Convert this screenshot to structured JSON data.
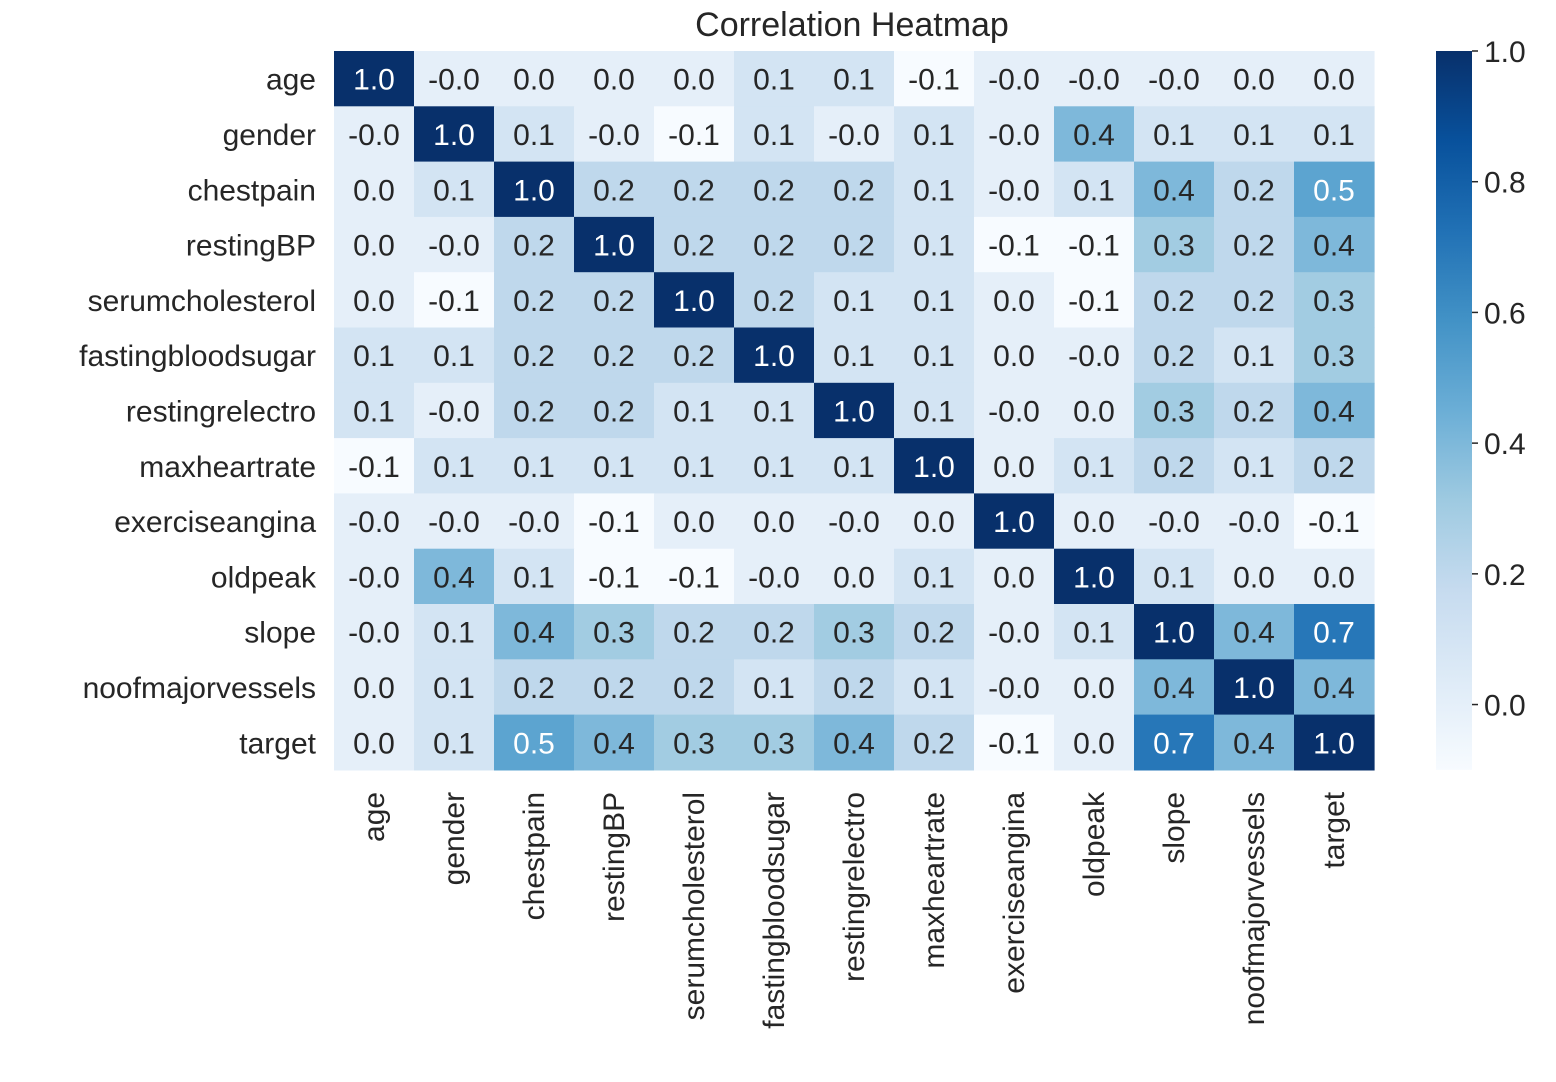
{
  "chart_data": {
    "type": "heatmap",
    "title": "Correlation Heatmap",
    "xlabel": "",
    "ylabel": "",
    "rows": [
      "age",
      "gender",
      "chestpain",
      "restingBP",
      "serumcholesterol",
      "fastingbloodsugar",
      "restingrelectro",
      "maxheartrate",
      "exerciseangina",
      "oldpeak",
      "slope",
      "noofmajorvessels",
      "target"
    ],
    "columns": [
      "age",
      "gender",
      "chestpain",
      "restingBP",
      "serumcholesterol",
      "fastingbloodsugar",
      "restingrelectro",
      "maxheartrate",
      "exerciseangina",
      "oldpeak",
      "slope",
      "noofmajorvessels",
      "target"
    ],
    "values": [
      [
        1.0,
        -0.0,
        0.0,
        0.0,
        0.0,
        0.1,
        0.1,
        -0.1,
        -0.0,
        -0.0,
        -0.0,
        0.0,
        0.0
      ],
      [
        -0.0,
        1.0,
        0.1,
        -0.0,
        -0.1,
        0.1,
        -0.0,
        0.1,
        -0.0,
        0.4,
        0.1,
        0.1,
        0.1
      ],
      [
        0.0,
        0.1,
        1.0,
        0.2,
        0.2,
        0.2,
        0.2,
        0.1,
        -0.0,
        0.1,
        0.4,
        0.2,
        0.5
      ],
      [
        0.0,
        -0.0,
        0.2,
        1.0,
        0.2,
        0.2,
        0.2,
        0.1,
        -0.1,
        -0.1,
        0.3,
        0.2,
        0.4
      ],
      [
        0.0,
        -0.1,
        0.2,
        0.2,
        1.0,
        0.2,
        0.1,
        0.1,
        0.0,
        -0.1,
        0.2,
        0.2,
        0.3
      ],
      [
        0.1,
        0.1,
        0.2,
        0.2,
        0.2,
        1.0,
        0.1,
        0.1,
        0.0,
        -0.0,
        0.2,
        0.1,
        0.3
      ],
      [
        0.1,
        -0.0,
        0.2,
        0.2,
        0.1,
        0.1,
        1.0,
        0.1,
        -0.0,
        0.0,
        0.3,
        0.2,
        0.4
      ],
      [
        -0.1,
        0.1,
        0.1,
        0.1,
        0.1,
        0.1,
        0.1,
        1.0,
        0.0,
        0.1,
        0.2,
        0.1,
        0.2
      ],
      [
        -0.0,
        -0.0,
        -0.0,
        -0.1,
        0.0,
        0.0,
        -0.0,
        0.0,
        1.0,
        0.0,
        -0.0,
        -0.0,
        -0.1
      ],
      [
        -0.0,
        0.4,
        0.1,
        -0.1,
        -0.1,
        -0.0,
        0.0,
        0.1,
        0.0,
        1.0,
        0.1,
        0.0,
        0.0
      ],
      [
        -0.0,
        0.1,
        0.4,
        0.3,
        0.2,
        0.2,
        0.3,
        0.2,
        -0.0,
        0.1,
        1.0,
        0.4,
        0.7
      ],
      [
        0.0,
        0.1,
        0.2,
        0.2,
        0.2,
        0.1,
        0.2,
        0.1,
        -0.0,
        0.0,
        0.4,
        1.0,
        0.4
      ],
      [
        0.0,
        0.1,
        0.5,
        0.4,
        0.3,
        0.3,
        0.4,
        0.2,
        -0.1,
        0.0,
        0.7,
        0.4,
        1.0
      ]
    ],
    "labels": [
      [
        "1.0",
        "-0.0",
        "0.0",
        "0.0",
        "0.0",
        "0.1",
        "0.1",
        "-0.1",
        "-0.0",
        "-0.0",
        "-0.0",
        "0.0",
        "0.0"
      ],
      [
        "-0.0",
        "1.0",
        "0.1",
        "-0.0",
        "-0.1",
        "0.1",
        "-0.0",
        "0.1",
        "-0.0",
        "0.4",
        "0.1",
        "0.1",
        "0.1"
      ],
      [
        "0.0",
        "0.1",
        "1.0",
        "0.2",
        "0.2",
        "0.2",
        "0.2",
        "0.1",
        "-0.0",
        "0.1",
        "0.4",
        "0.2",
        "0.5"
      ],
      [
        "0.0",
        "-0.0",
        "0.2",
        "1.0",
        "0.2",
        "0.2",
        "0.2",
        "0.1",
        "-0.1",
        "-0.1",
        "0.3",
        "0.2",
        "0.4"
      ],
      [
        "0.0",
        "-0.1",
        "0.2",
        "0.2",
        "1.0",
        "0.2",
        "0.1",
        "0.1",
        "0.0",
        "-0.1",
        "0.2",
        "0.2",
        "0.3"
      ],
      [
        "0.1",
        "0.1",
        "0.2",
        "0.2",
        "0.2",
        "1.0",
        "0.1",
        "0.1",
        "0.0",
        "-0.0",
        "0.2",
        "0.1",
        "0.3"
      ],
      [
        "0.1",
        "-0.0",
        "0.2",
        "0.2",
        "0.1",
        "0.1",
        "1.0",
        "0.1",
        "-0.0",
        "0.0",
        "0.3",
        "0.2",
        "0.4"
      ],
      [
        "-0.1",
        "0.1",
        "0.1",
        "0.1",
        "0.1",
        "0.1",
        "0.1",
        "1.0",
        "0.0",
        "0.1",
        "0.2",
        "0.1",
        "0.2"
      ],
      [
        "-0.0",
        "-0.0",
        "-0.0",
        "-0.1",
        "0.0",
        "0.0",
        "-0.0",
        "0.0",
        "1.0",
        "0.0",
        "-0.0",
        "-0.0",
        "-0.1"
      ],
      [
        "-0.0",
        "0.4",
        "0.1",
        "-0.1",
        "-0.1",
        "-0.0",
        "0.0",
        "0.1",
        "0.0",
        "1.0",
        "0.1",
        "0.0",
        "0.0"
      ],
      [
        "-0.0",
        "0.1",
        "0.4",
        "0.3",
        "0.2",
        "0.2",
        "0.3",
        "0.2",
        "-0.0",
        "0.1",
        "1.0",
        "0.4",
        "0.7"
      ],
      [
        "0.0",
        "0.1",
        "0.2",
        "0.2",
        "0.2",
        "0.1",
        "0.2",
        "0.1",
        "-0.0",
        "0.0",
        "0.4",
        "1.0",
        "0.4"
      ],
      [
        "0.0",
        "0.1",
        "0.5",
        "0.4",
        "0.3",
        "0.3",
        "0.4",
        "0.2",
        "-0.1",
        "0.0",
        "0.7",
        "0.4",
        "1.0"
      ]
    ],
    "colormap": "Blues",
    "colors": [
      "#f7fbff",
      "#deebf7",
      "#c6dbef",
      "#9ecae1",
      "#6baed6",
      "#4292c6",
      "#2171b5",
      "#08519c",
      "#08306b"
    ],
    "vmin": -0.1,
    "vmax": 1.0,
    "colorbar": {
      "ticks": [
        0.0,
        0.2,
        0.4,
        0.6,
        0.8,
        1.0
      ],
      "tick_labels": [
        "0.0",
        "0.2",
        "0.4",
        "0.6",
        "0.8",
        "1.0"
      ]
    },
    "grid": false
  }
}
